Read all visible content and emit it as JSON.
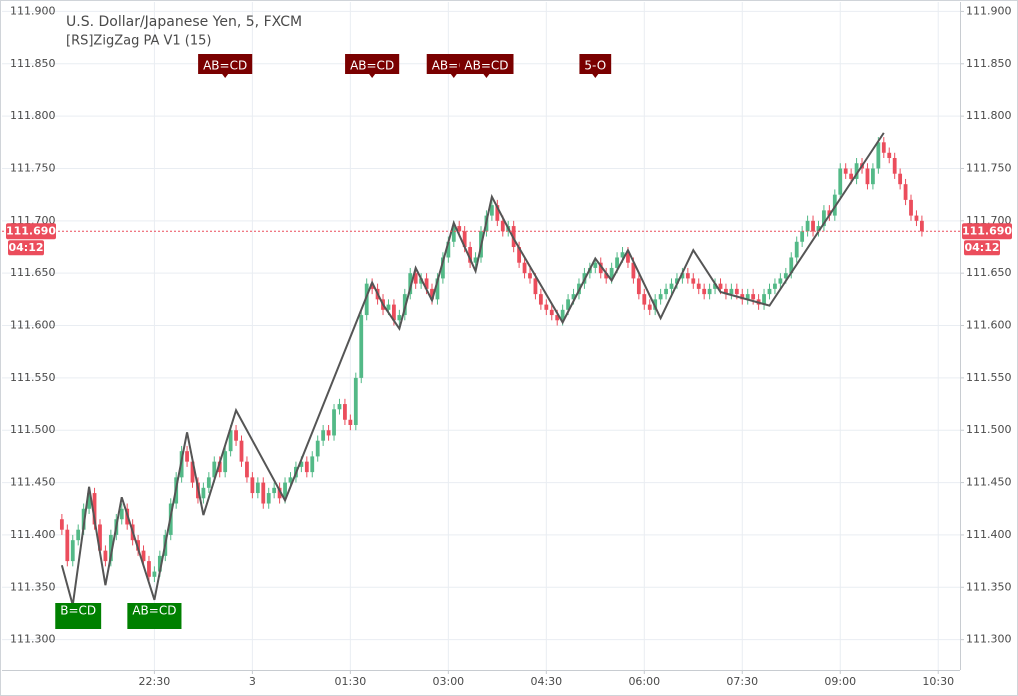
{
  "chart_data": {
    "type": "candlestick",
    "title": "U.S. Dollar/Japanese Yen, 5, FXCM",
    "subtitle": "[RS]ZigZag PA V1 (15)",
    "up_color": "#53b987",
    "down_color": "#eb4d5c",
    "grid": true,
    "xlim": [
      -230,
      650
    ],
    "xticks": [
      {
        "value": -90,
        "label": "22:30"
      },
      {
        "value": 0,
        "label": "3"
      },
      {
        "value": 90,
        "label": "01:30"
      },
      {
        "value": 180,
        "label": "03:00"
      },
      {
        "value": 270,
        "label": "04:30"
      },
      {
        "value": 360,
        "label": "06:00"
      },
      {
        "value": 450,
        "label": "07:30"
      },
      {
        "value": 540,
        "label": "09:00"
      },
      {
        "value": 630,
        "label": "10:30"
      }
    ],
    "ylim": [
      111.271,
      111.909
    ],
    "yticks": [
      {
        "value": 111.3,
        "label": "111.300"
      },
      {
        "value": 111.35,
        "label": "111.350"
      },
      {
        "value": 111.4,
        "label": "111.400"
      },
      {
        "value": 111.45,
        "label": "111.450"
      },
      {
        "value": 111.5,
        "label": "111.500"
      },
      {
        "value": 111.55,
        "label": "111.550"
      },
      {
        "value": 111.6,
        "label": "111.600"
      },
      {
        "value": 111.65,
        "label": "111.650"
      },
      {
        "value": 111.7,
        "label": "111.700"
      },
      {
        "value": 111.75,
        "label": "111.750"
      },
      {
        "value": 111.8,
        "label": "111.800"
      },
      {
        "value": 111.85,
        "label": "111.850"
      },
      {
        "value": 111.9,
        "label": "111.900"
      }
    ],
    "last_price": {
      "value": 111.69,
      "label": "111.690",
      "timer": "04:12",
      "color": "#eb4d5c"
    },
    "x": [
      -175,
      -170,
      -165,
      -160,
      -155,
      -150,
      -145,
      -140,
      -135,
      -130,
      -125,
      -120,
      -115,
      -110,
      -105,
      -100,
      -95,
      -90,
      -85,
      -80,
      -75,
      -70,
      -65,
      -60,
      -55,
      -50,
      -45,
      -40,
      -35,
      -30,
      -25,
      -20,
      -15,
      -10,
      -5,
      0,
      5,
      10,
      15,
      20,
      25,
      30,
      35,
      40,
      45,
      50,
      55,
      60,
      65,
      70,
      75,
      80,
      85,
      90,
      95,
      100,
      105,
      110,
      115,
      120,
      125,
      130,
      135,
      140,
      145,
      150,
      155,
      160,
      165,
      170,
      175,
      180,
      185,
      190,
      195,
      200,
      205,
      210,
      215,
      220,
      225,
      230,
      235,
      240,
      245,
      250,
      255,
      260,
      265,
      270,
      275,
      280,
      285,
      290,
      295,
      300,
      305,
      310,
      315,
      320,
      325,
      330,
      335,
      340,
      345,
      350,
      355,
      360,
      365,
      370,
      375,
      380,
      385,
      390,
      395,
      400,
      405,
      410,
      415,
      420,
      425,
      430,
      435,
      440,
      445,
      450,
      455,
      460,
      465,
      470,
      475,
      480,
      485,
      490,
      495,
      500,
      505,
      510,
      515,
      520,
      525,
      530,
      535,
      540,
      545,
      550,
      555,
      560,
      565,
      570,
      575,
      580,
      585,
      590,
      595,
      600,
      605,
      610,
      615
    ],
    "open": [
      111.415,
      111.405,
      111.375,
      111.395,
      111.405,
      111.425,
      111.44,
      111.41,
      111.385,
      111.375,
      111.4,
      111.415,
      111.425,
      111.41,
      111.395,
      111.385,
      111.375,
      111.36,
      111.365,
      111.38,
      111.4,
      111.43,
      111.455,
      111.48,
      111.47,
      111.45,
      111.435,
      111.445,
      111.455,
      111.47,
      111.46,
      111.48,
      111.5,
      111.49,
      111.47,
      111.455,
      111.44,
      111.45,
      111.43,
      111.44,
      111.445,
      111.435,
      111.45,
      111.455,
      111.465,
      111.47,
      111.46,
      111.475,
      111.49,
      111.5,
      111.495,
      111.52,
      111.525,
      111.51,
      111.505,
      111.55,
      111.61,
      111.64,
      111.635,
      111.625,
      111.615,
      111.62,
      111.605,
      111.61,
      111.63,
      111.65,
      111.64,
      111.645,
      111.635,
      111.625,
      111.645,
      111.665,
      111.68,
      111.695,
      111.69,
      111.675,
      111.66,
      111.665,
      111.69,
      111.705,
      111.715,
      111.7,
      111.69,
      111.695,
      111.675,
      111.66,
      111.65,
      111.645,
      111.63,
      111.62,
      111.615,
      111.61,
      111.605,
      111.615,
      111.625,
      111.63,
      111.64,
      111.65,
      111.655,
      111.66,
      111.65,
      111.645,
      111.655,
      111.665,
      111.67,
      111.66,
      111.645,
      111.63,
      111.62,
      111.615,
      111.625,
      111.63,
      111.635,
      111.64,
      111.645,
      111.65,
      111.645,
      111.64,
      111.635,
      111.63,
      111.635,
      111.64,
      111.635,
      111.63,
      111.635,
      111.63,
      111.625,
      111.63,
      111.625,
      111.62,
      111.63,
      111.635,
      111.64,
      111.645,
      111.65,
      111.665,
      111.68,
      111.69,
      111.7,
      111.69,
      111.695,
      111.71,
      111.705,
      111.725,
      111.75,
      111.745,
      111.74,
      111.755,
      111.75,
      111.735,
      111.75,
      111.775,
      111.765,
      111.76,
      111.745,
      111.735,
      111.72,
      111.705,
      111.7
    ],
    "high": [
      111.42,
      111.41,
      111.4,
      111.41,
      111.43,
      111.445,
      111.445,
      111.415,
      111.39,
      111.405,
      111.42,
      111.43,
      111.43,
      111.415,
      111.4,
      111.39,
      111.38,
      111.37,
      111.385,
      111.405,
      111.435,
      111.46,
      111.485,
      111.485,
      111.475,
      111.455,
      111.45,
      111.46,
      111.475,
      111.475,
      111.485,
      111.505,
      111.505,
      111.495,
      111.475,
      111.46,
      111.455,
      111.455,
      111.445,
      111.45,
      111.45,
      111.455,
      111.46,
      111.47,
      111.475,
      111.475,
      111.48,
      111.495,
      111.505,
      111.505,
      111.525,
      111.53,
      111.53,
      111.515,
      111.555,
      111.615,
      111.645,
      111.645,
      111.64,
      111.63,
      111.625,
      111.625,
      111.615,
      111.635,
      111.655,
      111.655,
      111.65,
      111.65,
      111.64,
      111.65,
      111.67,
      111.685,
      111.7,
      111.7,
      111.695,
      111.68,
      111.67,
      111.695,
      111.71,
      111.72,
      111.72,
      111.705,
      111.7,
      111.7,
      111.68,
      111.665,
      111.655,
      111.65,
      111.635,
      111.625,
      111.62,
      111.615,
      111.62,
      111.63,
      111.635,
      111.645,
      111.655,
      111.66,
      111.665,
      111.665,
      111.655,
      111.66,
      111.67,
      111.675,
      111.675,
      111.665,
      111.65,
      111.635,
      111.625,
      111.63,
      111.635,
      111.64,
      111.645,
      111.65,
      111.655,
      111.655,
      111.65,
      111.645,
      111.64,
      111.64,
      111.645,
      111.645,
      111.64,
      111.64,
      111.64,
      111.635,
      111.635,
      111.635,
      111.63,
      111.635,
      111.64,
      111.645,
      111.65,
      111.655,
      111.67,
      111.685,
      111.695,
      111.705,
      111.705,
      111.7,
      111.715,
      111.715,
      111.73,
      111.755,
      111.755,
      111.75,
      111.76,
      111.76,
      111.755,
      111.755,
      111.78,
      111.78,
      111.77,
      111.765,
      111.75,
      111.74,
      111.725,
      111.71,
      111.705
    ],
    "low": [
      111.4,
      111.37,
      111.37,
      111.39,
      111.4,
      111.42,
      111.405,
      111.38,
      111.37,
      111.37,
      111.395,
      111.41,
      111.405,
      111.39,
      111.38,
      111.37,
      111.355,
      111.355,
      111.36,
      111.375,
      111.395,
      111.425,
      111.45,
      111.465,
      111.445,
      111.43,
      111.43,
      111.44,
      111.45,
      111.455,
      111.455,
      111.475,
      111.485,
      111.465,
      111.45,
      111.435,
      111.435,
      111.425,
      111.425,
      111.435,
      111.43,
      111.43,
      111.445,
      111.45,
      111.46,
      111.455,
      111.455,
      111.47,
      111.485,
      111.49,
      111.49,
      111.515,
      111.505,
      111.5,
      111.5,
      111.545,
      111.605,
      111.63,
      111.62,
      111.61,
      111.61,
      111.6,
      111.6,
      111.605,
      111.625,
      111.635,
      111.635,
      111.63,
      111.62,
      111.62,
      111.64,
      111.66,
      111.675,
      111.685,
      111.67,
      111.655,
      111.655,
      111.66,
      111.685,
      111.7,
      111.695,
      111.685,
      111.685,
      111.67,
      111.655,
      111.645,
      111.64,
      111.625,
      111.615,
      111.61,
      111.605,
      111.6,
      111.6,
      111.61,
      111.62,
      111.625,
      111.635,
      111.645,
      111.65,
      111.645,
      111.64,
      111.64,
      111.65,
      111.66,
      111.655,
      111.64,
      111.625,
      111.615,
      111.61,
      111.61,
      111.62,
      111.625,
      111.63,
      111.635,
      111.64,
      111.64,
      111.635,
      111.63,
      111.625,
      111.625,
      111.63,
      111.63,
      111.625,
      111.625,
      111.625,
      111.62,
      111.62,
      111.62,
      111.615,
      111.615,
      111.625,
      111.63,
      111.635,
      111.64,
      111.645,
      111.66,
      111.675,
      111.685,
      111.685,
      111.685,
      111.69,
      111.7,
      111.7,
      111.72,
      111.74,
      111.735,
      111.735,
      111.745,
      111.73,
      111.73,
      111.745,
      111.76,
      111.755,
      111.74,
      111.73,
      111.715,
      111.7,
      111.695,
      111.685
    ],
    "close": [
      111.405,
      111.375,
      111.395,
      111.405,
      111.425,
      111.44,
      111.41,
      111.385,
      111.375,
      111.4,
      111.415,
      111.425,
      111.41,
      111.395,
      111.385,
      111.375,
      111.36,
      111.365,
      111.38,
      111.4,
      111.43,
      111.455,
      111.48,
      111.47,
      111.45,
      111.435,
      111.445,
      111.455,
      111.47,
      111.46,
      111.48,
      111.5,
      111.49,
      111.47,
      111.455,
      111.44,
      111.45,
      111.43,
      111.44,
      111.445,
      111.435,
      111.45,
      111.455,
      111.465,
      111.47,
      111.46,
      111.475,
      111.49,
      111.5,
      111.495,
      111.52,
      111.525,
      111.51,
      111.505,
      111.55,
      111.61,
      111.64,
      111.635,
      111.625,
      111.615,
      111.62,
      111.605,
      111.61,
      111.63,
      111.65,
      111.64,
      111.645,
      111.635,
      111.625,
      111.645,
      111.665,
      111.68,
      111.695,
      111.69,
      111.675,
      111.66,
      111.665,
      111.69,
      111.705,
      111.715,
      111.7,
      111.69,
      111.695,
      111.675,
      111.66,
      111.65,
      111.645,
      111.63,
      111.62,
      111.615,
      111.61,
      111.605,
      111.615,
      111.625,
      111.63,
      111.64,
      111.65,
      111.655,
      111.66,
      111.65,
      111.645,
      111.655,
      111.665,
      111.67,
      111.66,
      111.645,
      111.63,
      111.62,
      111.615,
      111.625,
      111.63,
      111.635,
      111.64,
      111.645,
      111.65,
      111.645,
      111.64,
      111.635,
      111.63,
      111.635,
      111.64,
      111.635,
      111.63,
      111.635,
      111.63,
      111.625,
      111.63,
      111.625,
      111.62,
      111.63,
      111.635,
      111.64,
      111.645,
      111.65,
      111.665,
      111.68,
      111.69,
      111.7,
      111.69,
      111.695,
      111.71,
      111.705,
      111.725,
      111.75,
      111.745,
      111.74,
      111.755,
      111.75,
      111.735,
      111.75,
      111.775,
      111.765,
      111.76,
      111.745,
      111.735,
      111.72,
      111.705,
      111.7,
      111.69
    ],
    "zigzag": {
      "color": "#555555",
      "x": [
        -175,
        -165,
        -150,
        -135,
        -120,
        -90,
        -60,
        -45,
        -15,
        30,
        110,
        120,
        135,
        150,
        165,
        185,
        205,
        220,
        240,
        285,
        315,
        330,
        345,
        375,
        405,
        430,
        475,
        580
      ],
      "values": [
        111.371,
        111.333,
        111.446,
        111.352,
        111.436,
        111.338,
        111.498,
        111.419,
        111.519,
        111.433,
        111.641,
        111.62,
        111.597,
        111.655,
        111.624,
        111.698,
        111.652,
        111.723,
        111.683,
        111.603,
        111.664,
        111.643,
        111.672,
        111.607,
        111.672,
        111.632,
        111.619,
        111.784
      ]
    },
    "annotations": [
      {
        "text": "AB=CD",
        "x": -25,
        "position": "top",
        "color": "#7a0000"
      },
      {
        "text": "AB=CD",
        "x": 110,
        "position": "top",
        "color": "#7a0000"
      },
      {
        "text": "AB=CD",
        "x": 185,
        "position": "top",
        "color": "#7a0000"
      },
      {
        "text": "AB=CD",
        "x": 215,
        "position": "top",
        "color": "#7a0000"
      },
      {
        "text": "5-O",
        "x": 315,
        "position": "top",
        "color": "#7a0000"
      },
      {
        "text": "B=CD",
        "x": -160,
        "position": "bottom",
        "color": "#008000"
      },
      {
        "text": "AB=CD",
        "x": -90,
        "position": "bottom",
        "color": "#008000"
      }
    ]
  }
}
